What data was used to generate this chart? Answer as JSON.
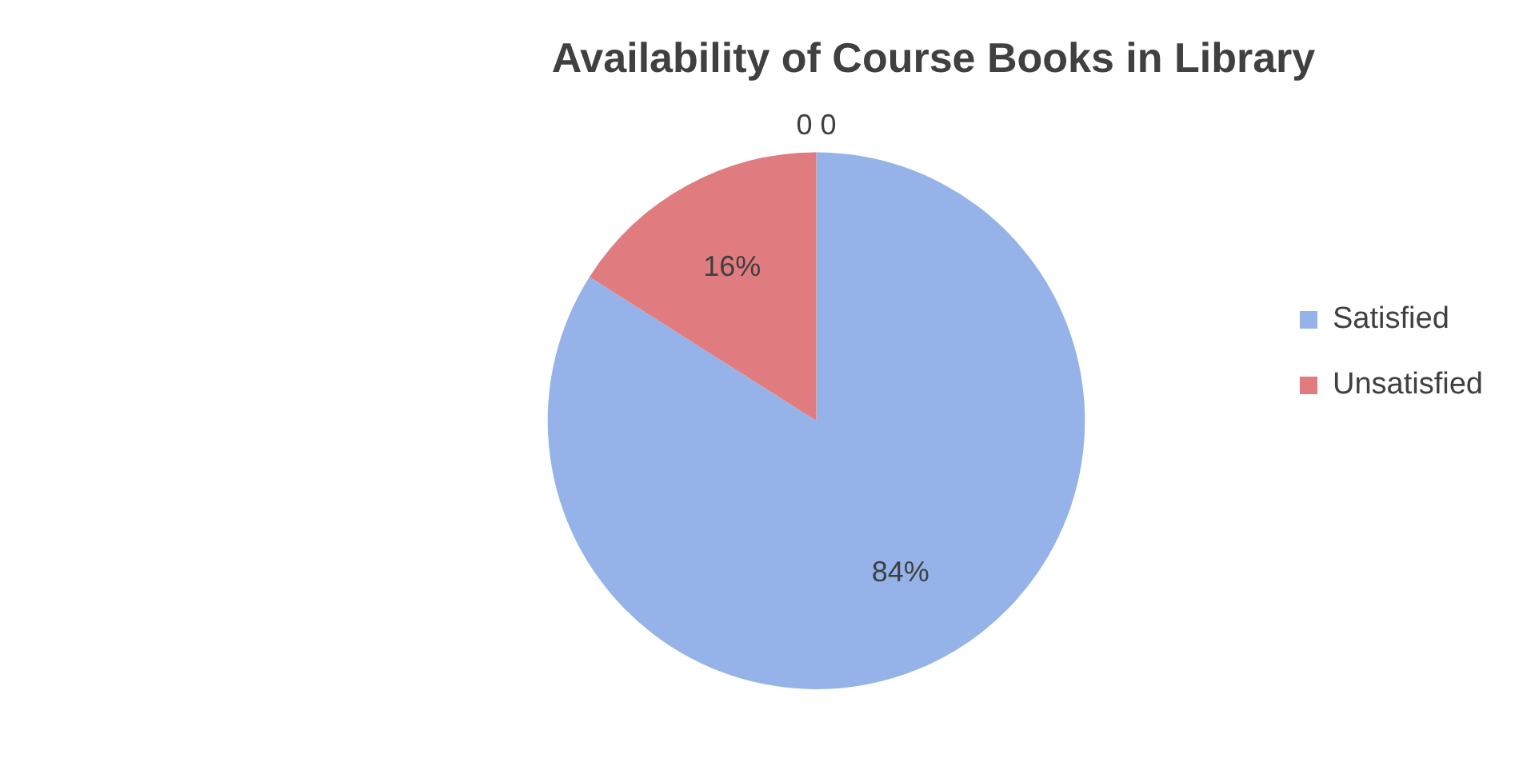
{
  "chart_data": {
    "type": "pie",
    "title": "Availability of Course Books in Library",
    "categories": [
      "Satisfied",
      "Unsatisfied"
    ],
    "values": [
      84,
      16
    ],
    "colors": [
      "#95b3e8",
      "#e07c80"
    ],
    "value_labels": [
      "84%",
      "16%"
    ],
    "annotations": [
      "0 0"
    ],
    "legend": "right"
  }
}
